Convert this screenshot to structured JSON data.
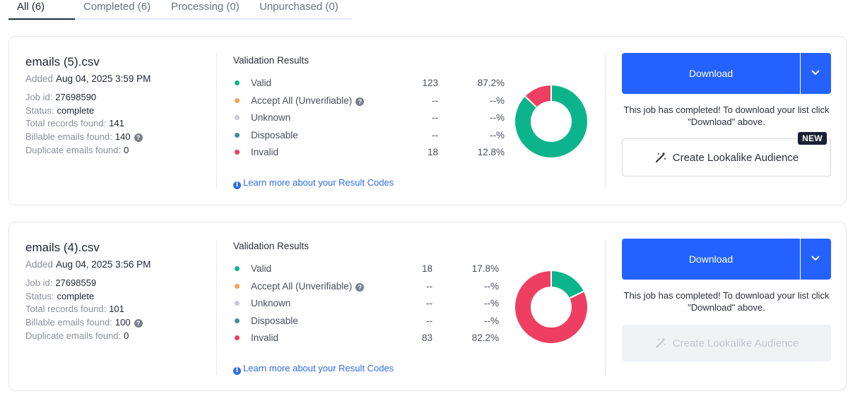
{
  "tabs": [
    {
      "label": "All (6)",
      "active": true
    },
    {
      "label": "Completed (6)",
      "active": false
    },
    {
      "label": "Processing (0)",
      "active": false
    },
    {
      "label": "Unpurchased (0)",
      "active": false
    }
  ],
  "colors": {
    "valid": "#0cb48c",
    "accept_all": "#f4a35c",
    "unknown": "#c7cbd1",
    "disposable": "#3d8e9f",
    "invalid": "#ee3f62",
    "primary": "#2461ff"
  },
  "jobs": [
    {
      "file_name": "emails (5).csv",
      "added_label": "Added",
      "added_value": "Aug 04, 2025 3:59 PM",
      "job_id_label": "Job id:",
      "job_id": "27698590",
      "status_label": "Status:",
      "status": "complete",
      "total_label": "Total records found:",
      "total": "141",
      "billable_label": "Billable emails found:",
      "billable": "140",
      "duplicate_label": "Duplicate emails found:",
      "duplicate": "0",
      "results_title": "Validation Results",
      "results": [
        {
          "label": "Valid",
          "count": "123",
          "pct": "87.2%"
        },
        {
          "label": "Accept All (Unverifiable)",
          "count": "--",
          "pct": "--%"
        },
        {
          "label": "Unknown",
          "count": "--",
          "pct": "--%"
        },
        {
          "label": "Disposable",
          "count": "--",
          "pct": "--%"
        },
        {
          "label": "Invalid",
          "count": "18",
          "pct": "12.8%"
        }
      ],
      "donut": {
        "valid_fraction": 0.872,
        "invalid_fraction": 0.128
      },
      "learn_more": "Learn more about your Result Codes",
      "download_label": "Download",
      "download_note": "This job has completed! To download your list click \"Download\" above.",
      "lookalike_label": "Create Lookalike Audience",
      "lookalike_badge": "NEW",
      "lookalike_enabled": true
    },
    {
      "file_name": "emails (4).csv",
      "added_label": "Added",
      "added_value": "Aug 04, 2025 3:56 PM",
      "job_id_label": "Job id:",
      "job_id": "27698559",
      "status_label": "Status:",
      "status": "complete",
      "total_label": "Total records found:",
      "total": "101",
      "billable_label": "Billable emails found:",
      "billable": "100",
      "duplicate_label": "Duplicate emails found:",
      "duplicate": "0",
      "results_title": "Validation Results",
      "results": [
        {
          "label": "Valid",
          "count": "18",
          "pct": "17.8%"
        },
        {
          "label": "Accept All (Unverifiable)",
          "count": "--",
          "pct": "--%"
        },
        {
          "label": "Unknown",
          "count": "--",
          "pct": "--%"
        },
        {
          "label": "Disposable",
          "count": "--",
          "pct": "--%"
        },
        {
          "label": "Invalid",
          "count": "83",
          "pct": "82.2%"
        }
      ],
      "donut": {
        "valid_fraction": 0.178,
        "invalid_fraction": 0.822
      },
      "learn_more": "Learn more about your Result Codes",
      "download_label": "Download",
      "download_note": "This job has completed! To download your list click \"Download\" above.",
      "lookalike_label": "Create Lookalike Audience",
      "lookalike_enabled": false
    }
  ]
}
